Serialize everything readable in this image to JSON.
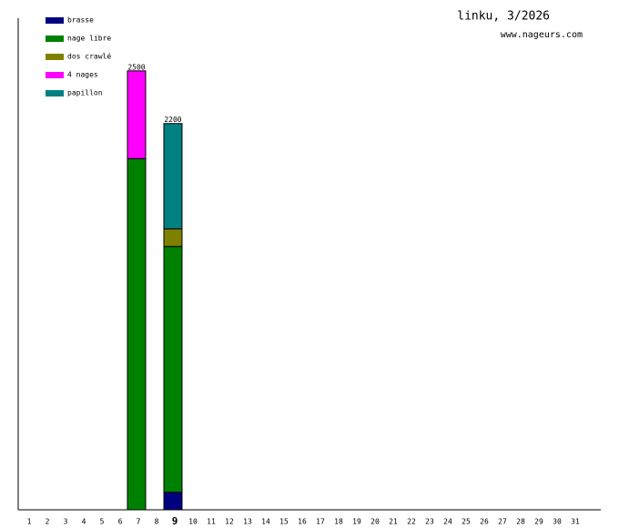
{
  "chart_data": {
    "type": "stacked-bar",
    "title": "linku, 3/2026",
    "subtitle": "www.nageurs.com",
    "categories": [
      "1",
      "2",
      "3",
      "4",
      "5",
      "6",
      "7",
      "8",
      "9",
      "10",
      "11",
      "12",
      "13",
      "14",
      "15",
      "16",
      "17",
      "18",
      "19",
      "20",
      "21",
      "22",
      "23",
      "24",
      "25",
      "26",
      "27",
      "28",
      "29",
      "30",
      "31"
    ],
    "highlight_index": 8,
    "series": [
      {
        "name": "brasse",
        "color": "#000080",
        "values": [
          null,
          null,
          null,
          null,
          null,
          null,
          null,
          null,
          100,
          null,
          null,
          null,
          null,
          null,
          null,
          null,
          null,
          null,
          null,
          null,
          null,
          null,
          null,
          null,
          null,
          null,
          null,
          null,
          null,
          null,
          null
        ]
      },
      {
        "name": "nage libre",
        "color": "#008000",
        "values": [
          null,
          null,
          null,
          null,
          null,
          null,
          2000,
          null,
          1400,
          null,
          null,
          null,
          null,
          null,
          null,
          null,
          null,
          null,
          null,
          null,
          null,
          null,
          null,
          null,
          null,
          null,
          null,
          null,
          null,
          null,
          null
        ]
      },
      {
        "name": "dos crawlé",
        "color": "#808000",
        "values": [
          null,
          null,
          null,
          null,
          null,
          null,
          null,
          null,
          100,
          null,
          null,
          null,
          null,
          null,
          null,
          null,
          null,
          null,
          null,
          null,
          null,
          null,
          null,
          null,
          null,
          null,
          null,
          null,
          null,
          null,
          null
        ]
      },
      {
        "name": "4 nages",
        "color": "#ff00ff",
        "values": [
          null,
          null,
          null,
          null,
          null,
          null,
          500,
          null,
          null,
          null,
          null,
          null,
          null,
          null,
          null,
          null,
          null,
          null,
          null,
          null,
          null,
          null,
          null,
          null,
          null,
          null,
          null,
          null,
          null,
          null,
          null
        ]
      },
      {
        "name": "papillon",
        "color": "#008080",
        "values": [
          null,
          null,
          null,
          null,
          null,
          null,
          null,
          null,
          600,
          null,
          null,
          null,
          null,
          null,
          null,
          null,
          null,
          null,
          null,
          null,
          null,
          null,
          null,
          null,
          null,
          null,
          null,
          null,
          null,
          null,
          null
        ]
      }
    ],
    "totals": [
      null,
      null,
      null,
      null,
      null,
      null,
      2500,
      null,
      2200,
      null,
      null,
      null,
      null,
      null,
      null,
      null,
      null,
      null,
      null,
      null,
      null,
      null,
      null,
      null,
      null,
      null,
      null,
      null,
      null,
      null,
      null
    ],
    "ylim": [
      0,
      2800
    ],
    "legend": "upper-left"
  }
}
